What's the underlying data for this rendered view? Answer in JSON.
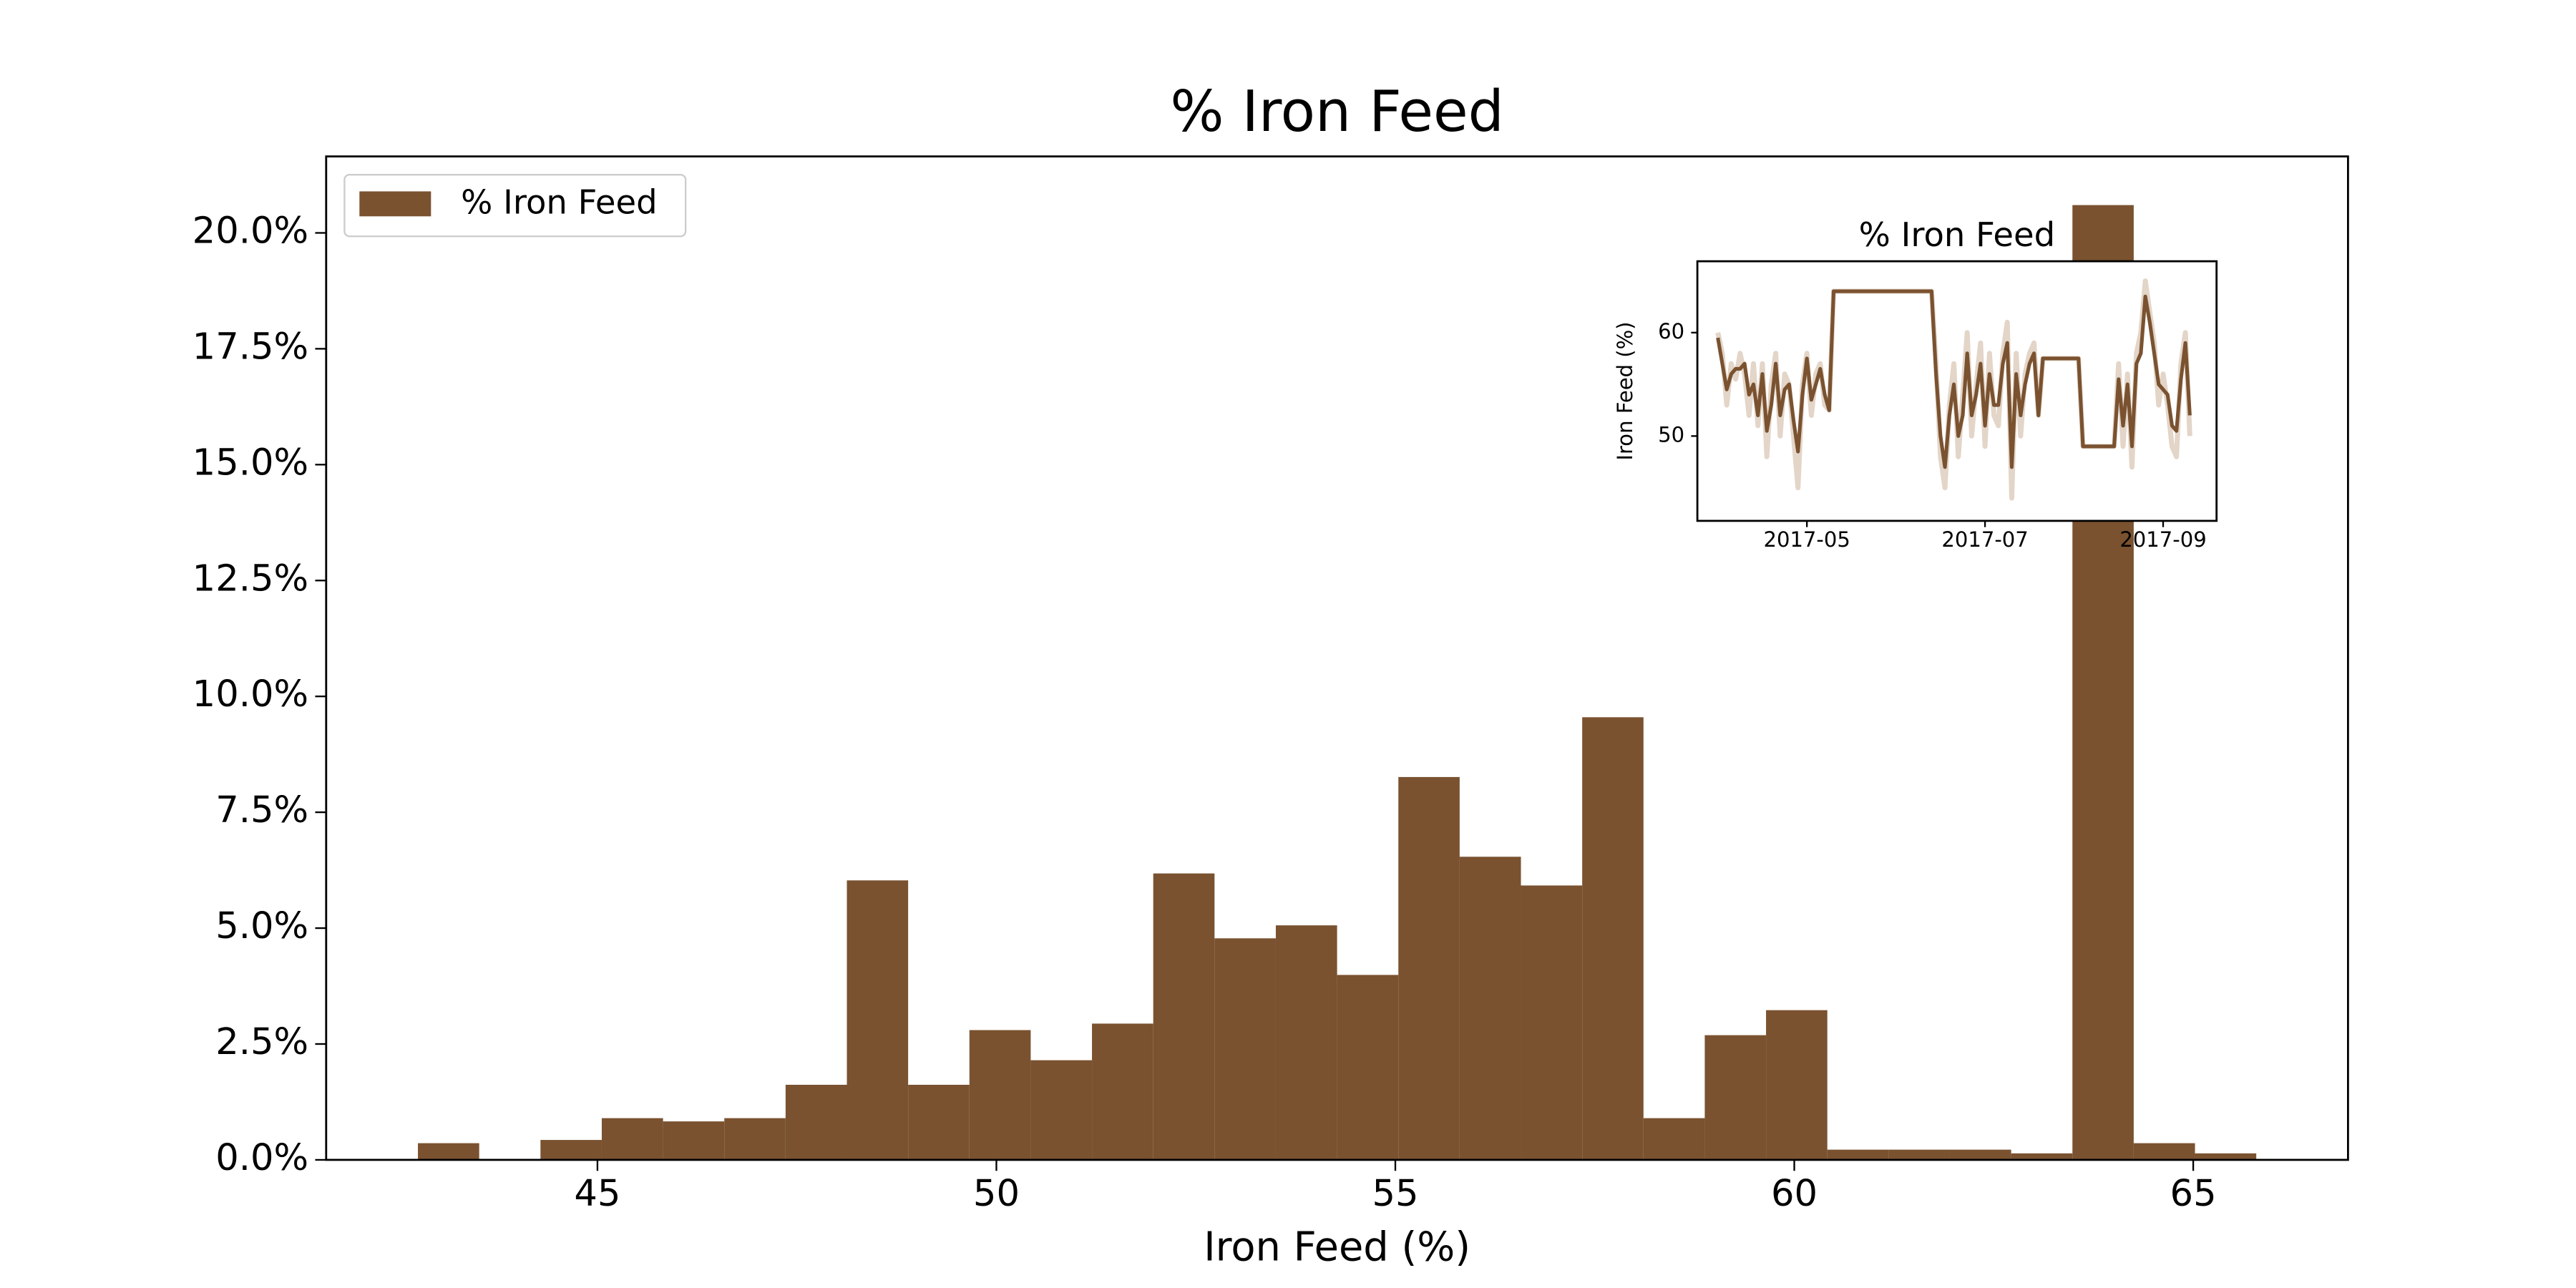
{
  "chart_data": [
    {
      "type": "histogram",
      "title": "% Iron Feed",
      "xlabel": "Iron Feed (%)",
      "bins": [
        42.75,
        43.518,
        44.286,
        45.054,
        45.822,
        46.59,
        47.358,
        48.126,
        48.894,
        49.662,
        50.43,
        51.198,
        51.966,
        52.734,
        53.502,
        54.27,
        55.038,
        55.806,
        56.574,
        57.342,
        58.11,
        58.878,
        59.646,
        60.414,
        61.182,
        61.95,
        62.718,
        63.486,
        64.254,
        65.022,
        65.79
      ],
      "series": [
        {
          "name": "% Iron Feed",
          "color": "#7a5230",
          "values": [
            0.36,
            0,
            0.43,
            0.9,
            0.83,
            0.9,
            1.62,
            6.03,
            1.62,
            2.8,
            2.15,
            2.94,
            6.18,
            4.78,
            5.06,
            3.99,
            8.26,
            6.54,
            5.92,
            9.55,
            0.9,
            2.69,
            3.23,
            0.22,
            0.22,
            0.22,
            0.14,
            20.6,
            0.36,
            0.14
          ]
        }
      ],
      "xlim": [
        41.6,
        66.94
      ],
      "ylim": [
        0,
        21.65
      ],
      "xticks": [
        45,
        50,
        55,
        60,
        65
      ],
      "yticks": [
        {
          "value": 0,
          "label": "0.0%"
        },
        {
          "value": 2.5,
          "label": "2.5%"
        },
        {
          "value": 5,
          "label": "5.0%"
        },
        {
          "value": 7.5,
          "label": "7.5%"
        },
        {
          "value": 10,
          "label": "10.0%"
        },
        {
          "value": 12.5,
          "label": "12.5%"
        },
        {
          "value": 15,
          "label": "15.0%"
        },
        {
          "value": 17.5,
          "label": "17.5%"
        },
        {
          "value": 20,
          "label": "20.0%"
        }
      ],
      "legend": "upper left"
    },
    {
      "type": "line",
      "title": "% Iron Feed",
      "ylabel": "Iron Feed (%)",
      "x": [
        4.0,
        4.05,
        4.1,
        4.15,
        4.2,
        4.25,
        4.3,
        4.35,
        4.4,
        4.45,
        4.5,
        4.55,
        4.6,
        4.65,
        4.7,
        4.75,
        4.8,
        4.85,
        4.9,
        4.95,
        5.0,
        5.05,
        5.1,
        5.15,
        5.2,
        5.25,
        5.3,
        6.4,
        6.45,
        6.5,
        6.55,
        6.6,
        6.65,
        6.7,
        6.75,
        6.8,
        6.85,
        6.9,
        6.95,
        7.0,
        7.05,
        7.1,
        7.15,
        7.2,
        7.25,
        7.3,
        7.35,
        7.4,
        7.45,
        7.5,
        7.55,
        7.6,
        7.65,
        8.05,
        8.1,
        8.45,
        8.5,
        8.55,
        8.6,
        8.65,
        8.7,
        8.75,
        8.8,
        8.85,
        8.9,
        8.95,
        9.0,
        9.05,
        9.1,
        9.15,
        9.2,
        9.25,
        9.3
      ],
      "series": [
        {
          "color": "#e3d5c8",
          "values": [
            60,
            58,
            53,
            57,
            55.5,
            58,
            56,
            52,
            57,
            51,
            57,
            48,
            55,
            58,
            50,
            56,
            55,
            50,
            45,
            55,
            58,
            52,
            56,
            57,
            53,
            52.5,
            64,
            64,
            57,
            48,
            45,
            53,
            57,
            48,
            54,
            60,
            50,
            55,
            59,
            49,
            58,
            52,
            51,
            58,
            61,
            44,
            58,
            50,
            56,
            58,
            59,
            52,
            57.5,
            57.5,
            49,
            49,
            57,
            49,
            56,
            47,
            58,
            60,
            65,
            62,
            59,
            53,
            56,
            53,
            49,
            48,
            57,
            60,
            50
          ]
        },
        {
          "color": "#7a5230",
          "values": [
            59.5,
            57,
            54.5,
            56,
            56.5,
            56.5,
            57,
            54,
            55,
            52,
            56,
            50.5,
            53,
            57,
            52,
            54.5,
            55,
            51.5,
            48.5,
            54,
            57.5,
            53.5,
            55,
            56.5,
            54,
            52.5,
            64,
            64,
            56,
            50,
            47,
            52,
            55,
            50,
            52,
            58,
            52,
            54,
            57,
            51,
            56,
            53,
            53,
            57,
            59,
            47,
            56,
            52,
            55,
            57,
            58,
            52,
            57.5,
            57.5,
            49,
            49,
            55.5,
            51,
            55,
            49,
            57,
            58,
            63.5,
            61,
            58,
            55,
            54.5,
            54,
            51,
            50.5,
            55.5,
            59,
            52
          ]
        }
      ],
      "xlim": [
        3.77,
        9.6
      ],
      "ylim": [
        41.8,
        66.9
      ],
      "xticks": [
        {
          "value": 5,
          "label": "2017-05"
        },
        {
          "value": 7,
          "label": "2017-07"
        },
        {
          "value": 9,
          "label": "2017-09"
        }
      ],
      "yticks": [
        50,
        60
      ]
    }
  ]
}
